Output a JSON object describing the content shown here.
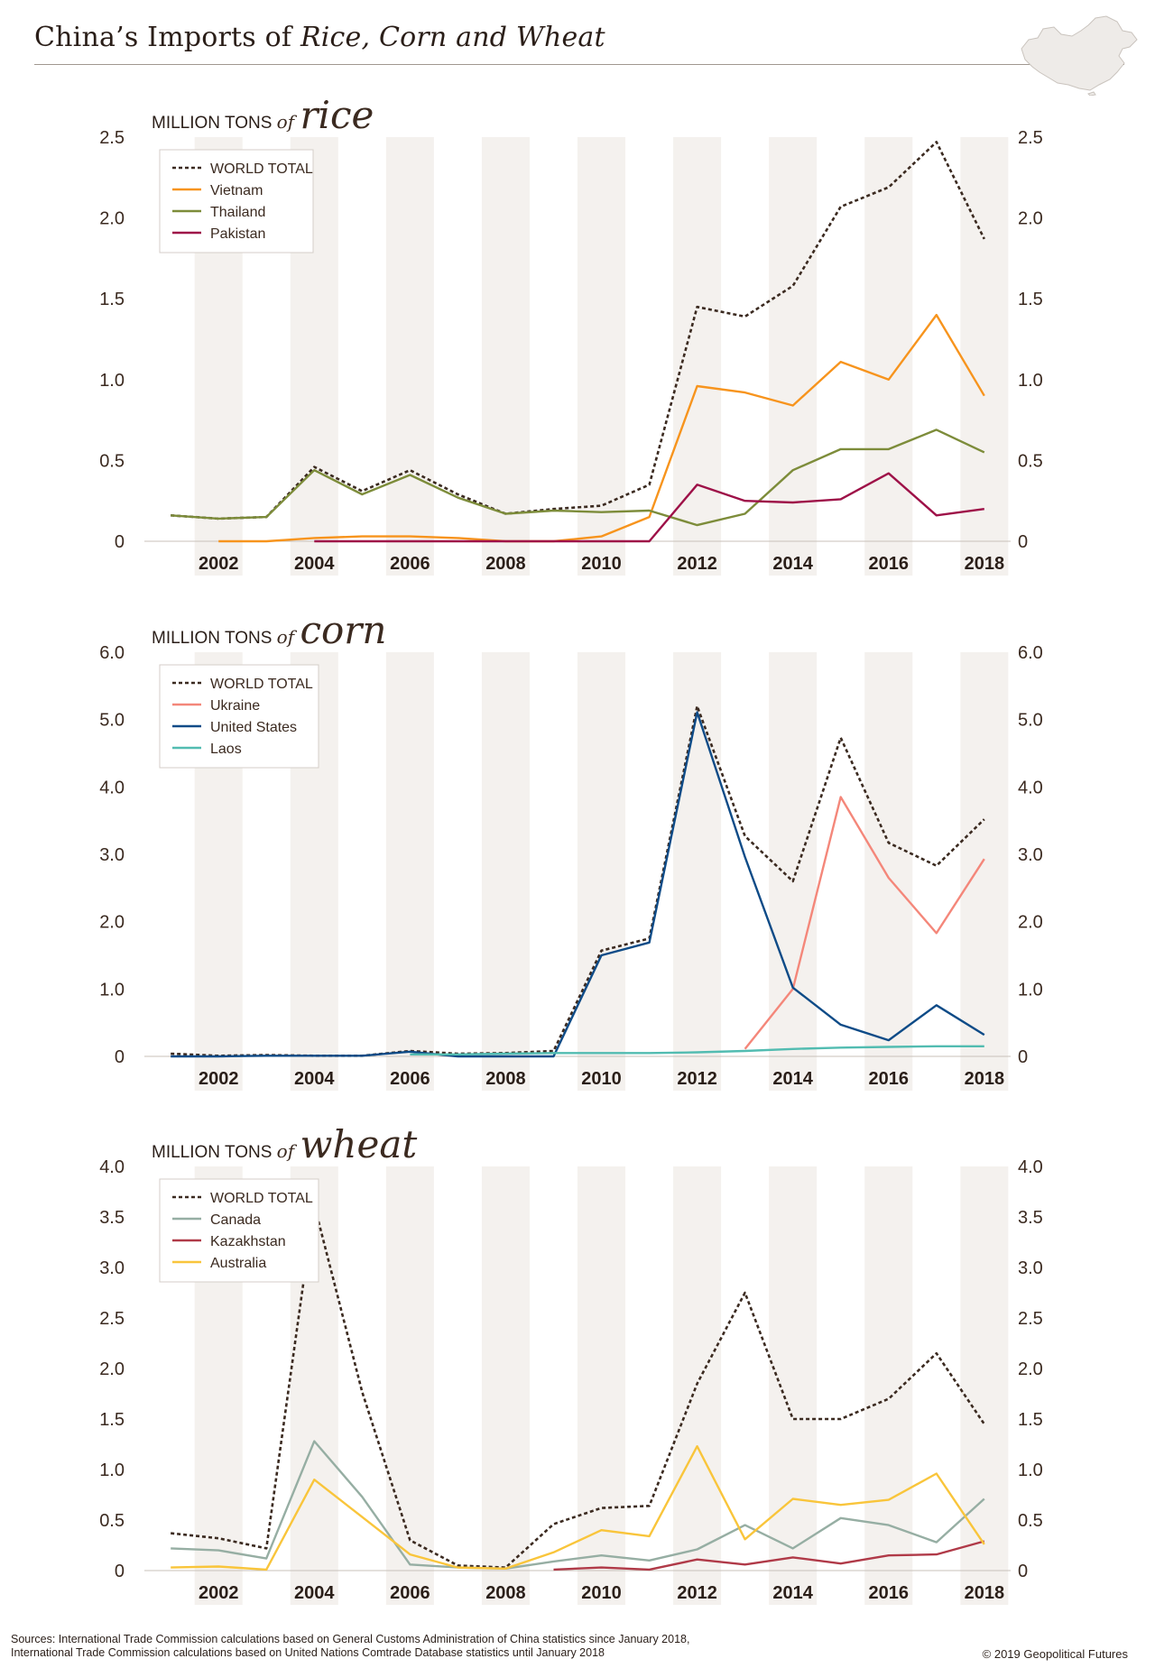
{
  "title": {
    "prefix": "China’s Imports of ",
    "emphasis": "Rice, Corn and Wheat"
  },
  "map_icon": "china-map-icon",
  "unit_label": "MILLION TONS",
  "unit_of": "of",
  "colors": {
    "world_total": "#3b2a20",
    "vietnam": "#f7941d",
    "thailand": "#7d8c3a",
    "pakistan": "#9e1148",
    "ukraine": "#f4877a",
    "united_states": "#0e4b87",
    "laos": "#52bcb1",
    "canada": "#96aea3",
    "kazakhstan": "#b03a48",
    "australia": "#f9c53b",
    "band": "#f4f1ee"
  },
  "chart_data": [
    {
      "type": "line",
      "commodity": "rice",
      "x": [
        2001,
        2002,
        2003,
        2004,
        2005,
        2006,
        2007,
        2008,
        2009,
        2010,
        2011,
        2012,
        2013,
        2014,
        2015,
        2016,
        2017,
        2018
      ],
      "xticks": [
        2002,
        2004,
        2006,
        2008,
        2010,
        2012,
        2014,
        2016,
        2018
      ],
      "ylim": [
        0,
        2.5
      ],
      "yticks": [
        "0",
        "0.5",
        "1.0",
        "1.5",
        "2.0",
        "2.5"
      ],
      "legend_position": "top-left",
      "series": [
        {
          "name": "WORLD TOTAL",
          "key": "world_total",
          "dashed": true,
          "values": [
            0.16,
            0.14,
            0.15,
            0.46,
            0.31,
            0.44,
            0.29,
            0.17,
            0.2,
            0.22,
            0.35,
            1.45,
            1.39,
            1.58,
            2.07,
            2.19,
            2.47,
            1.87
          ]
        },
        {
          "name": "Vietnam",
          "key": "vietnam",
          "dashed": false,
          "values": [
            null,
            0.0,
            0.0,
            0.02,
            0.03,
            0.03,
            0.02,
            0.0,
            0.0,
            0.03,
            0.15,
            0.96,
            0.92,
            0.84,
            1.11,
            1.0,
            1.4,
            0.9
          ]
        },
        {
          "name": "Thailand",
          "key": "thailand",
          "dashed": false,
          "values": [
            0.16,
            0.14,
            0.15,
            0.44,
            0.29,
            0.41,
            0.27,
            0.17,
            0.19,
            0.18,
            0.19,
            0.1,
            0.17,
            0.44,
            0.57,
            0.57,
            0.69,
            0.55
          ]
        },
        {
          "name": "Pakistan",
          "key": "pakistan",
          "dashed": false,
          "values": [
            null,
            null,
            null,
            0.0,
            0.0,
            0.0,
            0.0,
            0.0,
            0.0,
            0.0,
            0.0,
            0.35,
            0.25,
            0.24,
            0.26,
            0.42,
            0.16,
            0.2
          ]
        }
      ]
    },
    {
      "type": "line",
      "commodity": "corn",
      "x": [
        2001,
        2002,
        2003,
        2004,
        2005,
        2006,
        2007,
        2008,
        2009,
        2010,
        2011,
        2012,
        2013,
        2014,
        2015,
        2016,
        2017,
        2018
      ],
      "xticks": [
        2002,
        2004,
        2006,
        2008,
        2010,
        2012,
        2014,
        2016,
        2018
      ],
      "ylim": [
        0,
        6.0
      ],
      "yticks": [
        "0",
        "1.0",
        "2.0",
        "3.0",
        "4.0",
        "5.0",
        "6.0"
      ],
      "legend_position": "top-left",
      "series": [
        {
          "name": "WORLD TOTAL",
          "key": "world_total",
          "dashed": true,
          "values": [
            0.04,
            0.01,
            0.02,
            0.01,
            0.01,
            0.08,
            0.04,
            0.05,
            0.08,
            1.57,
            1.75,
            5.2,
            3.27,
            2.6,
            4.73,
            3.17,
            2.83,
            3.52
          ]
        },
        {
          "name": "Ukraine",
          "key": "ukraine",
          "dashed": false,
          "values": [
            null,
            null,
            null,
            null,
            null,
            null,
            null,
            null,
            null,
            null,
            null,
            null,
            0.11,
            1.0,
            3.85,
            2.65,
            1.83,
            2.93
          ]
        },
        {
          "name": "United States",
          "key": "united_states",
          "dashed": false,
          "values": [
            0.0,
            0.0,
            0.01,
            0.01,
            0.01,
            0.07,
            0.0,
            0.0,
            0.0,
            1.5,
            1.69,
            5.11,
            2.96,
            1.02,
            0.47,
            0.24,
            0.76,
            0.32
          ]
        },
        {
          "name": "Laos",
          "key": "laos",
          "dashed": false,
          "values": [
            null,
            null,
            null,
            null,
            null,
            0.03,
            0.03,
            0.04,
            0.05,
            0.05,
            0.05,
            0.06,
            0.08,
            0.11,
            0.13,
            0.14,
            0.15,
            0.15
          ]
        }
      ]
    },
    {
      "type": "line",
      "commodity": "wheat",
      "x": [
        2001,
        2002,
        2003,
        2004,
        2005,
        2006,
        2007,
        2008,
        2009,
        2010,
        2011,
        2012,
        2013,
        2014,
        2015,
        2016,
        2017,
        2018
      ],
      "xticks": [
        2002,
        2004,
        2006,
        2008,
        2010,
        2012,
        2014,
        2016,
        2018
      ],
      "ylim": [
        0,
        4.0
      ],
      "yticks": [
        "0",
        "0.5",
        "1.0",
        "1.5",
        "2.0",
        "2.5",
        "3.0",
        "3.5",
        "4.0"
      ],
      "legend_position": "top-left",
      "series": [
        {
          "name": "WORLD TOTAL",
          "key": "world_total",
          "dashed": true,
          "values": [
            0.37,
            0.32,
            0.22,
            3.62,
            1.77,
            0.3,
            0.05,
            0.03,
            0.46,
            0.62,
            0.64,
            1.85,
            2.75,
            1.5,
            1.5,
            1.7,
            2.15,
            1.45
          ]
        },
        {
          "name": "Canada",
          "key": "canada",
          "dashed": false,
          "values": [
            0.22,
            0.2,
            0.12,
            1.28,
            0.73,
            0.06,
            0.03,
            0.02,
            0.09,
            0.15,
            0.1,
            0.21,
            0.45,
            0.22,
            0.52,
            0.45,
            0.28,
            0.71
          ]
        },
        {
          "name": "Kazakhstan",
          "key": "kazakhstan",
          "dashed": false,
          "values": [
            null,
            null,
            null,
            null,
            null,
            null,
            null,
            null,
            0.01,
            0.03,
            0.01,
            0.11,
            0.06,
            0.13,
            0.07,
            0.15,
            0.16,
            0.29
          ]
        },
        {
          "name": "Australia",
          "key": "australia",
          "dashed": false,
          "values": [
            0.03,
            0.04,
            0.01,
            0.9,
            0.53,
            0.16,
            0.03,
            0.02,
            0.18,
            0.4,
            0.34,
            1.23,
            0.31,
            0.71,
            0.65,
            0.7,
            0.96,
            0.26
          ]
        }
      ]
    }
  ],
  "footer": {
    "sources_line1": "Sources: International Trade Commission calculations based on General Customs Administration of China statistics since January 2018,",
    "sources_line2": "International Trade Commission calculations based on United Nations Comtrade Database statistics until January 2018",
    "copyright": "© 2019 Geopolitical Futures"
  }
}
